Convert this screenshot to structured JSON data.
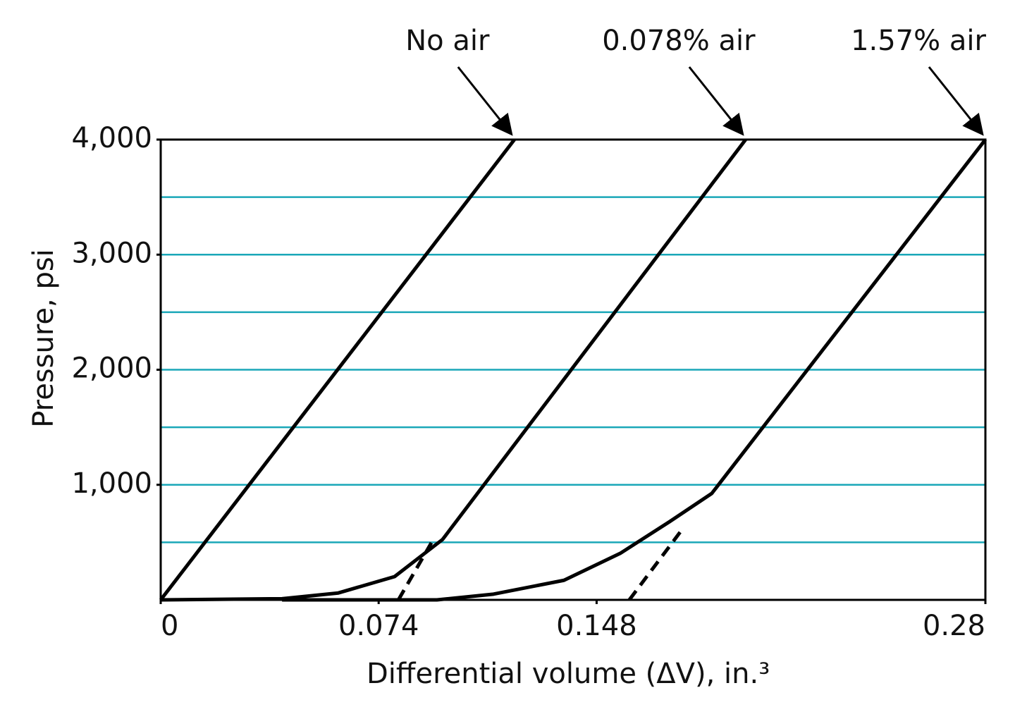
{
  "chart_data": {
    "type": "line",
    "x_label": "Differential volume (ΔV), in.³",
    "y_label": "Pressure, psi",
    "xlim": [
      0,
      0.28
    ],
    "ylim": [
      0,
      4000
    ],
    "xticks": [
      0,
      0.074,
      0.148,
      0.28
    ],
    "yticks": [
      {
        "value": 1000,
        "label": "1,000"
      },
      {
        "value": 2000,
        "label": "2,000"
      },
      {
        "value": 3000,
        "label": "3,000"
      },
      {
        "value": 4000,
        "label": "4,000"
      }
    ],
    "ygrid": [
      500,
      1000,
      1500,
      2000,
      2500,
      3000,
      3500
    ],
    "grid_color": "#1aa7b8",
    "color": "#000000",
    "series": [
      {
        "name": "No air",
        "x": [
          0,
          0.1201
        ],
        "values": [
          0,
          4000
        ]
      },
      {
        "name": "0.078% air",
        "x": [
          0,
          0.0412,
          0.0603,
          0.0794,
          0.0957,
          0.1986
        ],
        "values": [
          0,
          10,
          60,
          202,
          525,
          4000
        ],
        "extension": {
          "x": [
            0.0807,
            0.0919
          ],
          "values": [
            0,
            496
          ]
        }
      },
      {
        "name": "1.57% air",
        "x": [
          0.0412,
          0.0938,
          0.113,
          0.1369,
          0.156,
          0.1728,
          0.1871,
          0.28
        ],
        "values": [
          0,
          0,
          50,
          170,
          404,
          680,
          925,
          4000
        ],
        "extension": {
          "x": [
            0.1591,
            0.1776
          ],
          "values": [
            0,
            631
          ]
        }
      }
    ]
  }
}
